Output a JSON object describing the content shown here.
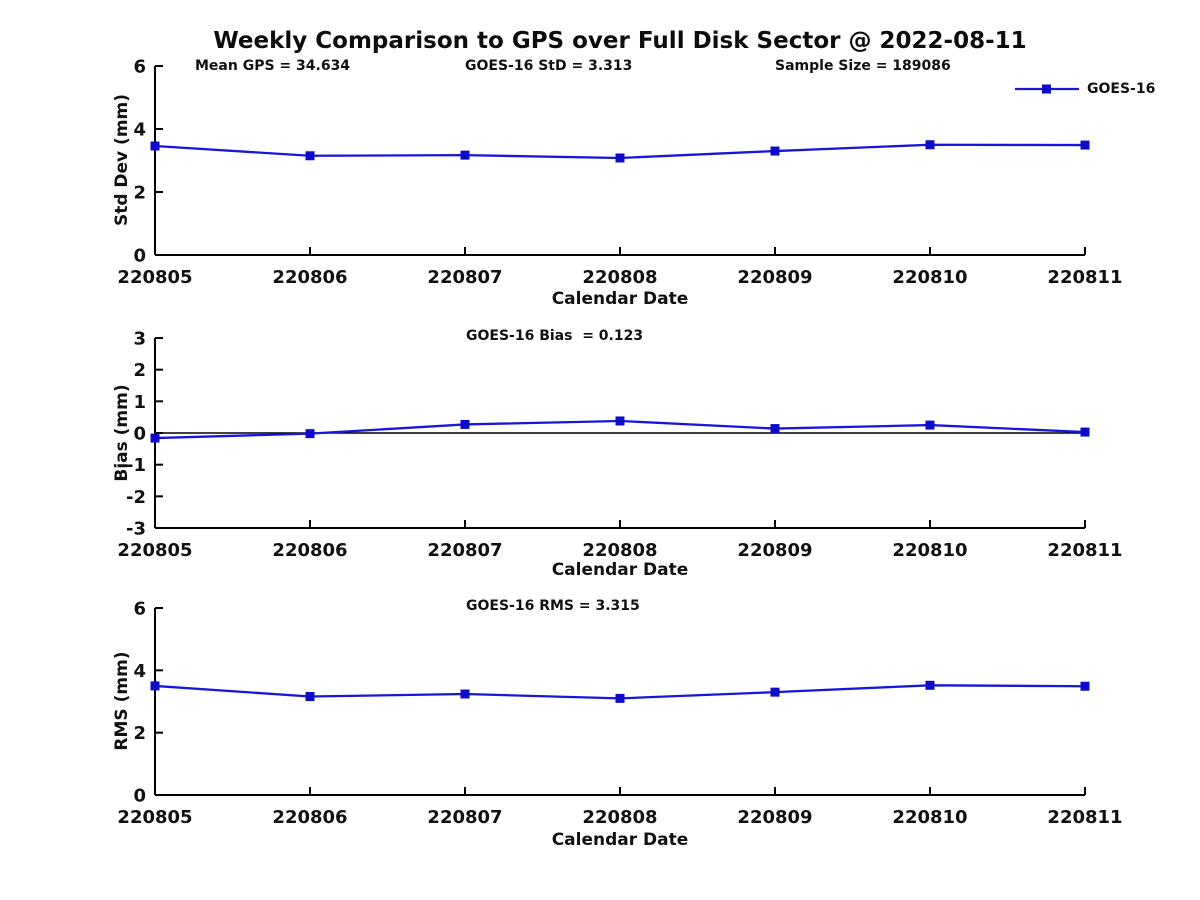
{
  "page": {
    "title": "Weekly Comparison to GPS over Full Disk Sector @ 2022-08-11"
  },
  "colors": {
    "line": "#1616dd",
    "marker": "#0d0dc9",
    "axis": "#000000",
    "text": "#111111",
    "background": "#ffffff"
  },
  "chart_data": [
    {
      "type": "line",
      "name": "std-dev-subplot",
      "categories": [
        "220805",
        "220806",
        "220807",
        "220808",
        "220809",
        "220810",
        "220811"
      ],
      "series": [
        {
          "name": "GOES-16",
          "values": [
            3.46,
            3.15,
            3.17,
            3.08,
            3.3,
            3.5,
            3.49
          ]
        }
      ],
      "xlabel": "Calendar Date",
      "ylabel": "Std Dev (mm)",
      "ylim": [
        0,
        6
      ],
      "yticks": [
        0,
        2,
        4,
        6
      ],
      "grid": false,
      "zero_line": false,
      "marker": "square",
      "annotations": [
        "Mean GPS = 34.634",
        "GOES-16 StD = 3.313",
        "Sample Size = 189086"
      ],
      "legend": {
        "label": "GOES-16",
        "position": "top-right"
      }
    },
    {
      "type": "line",
      "name": "bias-subplot",
      "categories": [
        "220805",
        "220806",
        "220807",
        "220808",
        "220809",
        "220810",
        "220811"
      ],
      "series": [
        {
          "name": "GOES-16",
          "values": [
            -0.16,
            -0.02,
            0.27,
            0.38,
            0.14,
            0.25,
            0.03
          ]
        }
      ],
      "xlabel": "Calendar Date",
      "ylabel": "Bias (mm)",
      "ylim": [
        -3,
        3
      ],
      "yticks": [
        3,
        2,
        1,
        0,
        -1,
        -2,
        -3
      ],
      "grid": false,
      "zero_line": true,
      "marker": "square",
      "annotations": [
        "GOES-16 Bias  = 0.123"
      ]
    },
    {
      "type": "line",
      "name": "rms-subplot",
      "categories": [
        "220805",
        "220806",
        "220807",
        "220808",
        "220809",
        "220810",
        "220811"
      ],
      "series": [
        {
          "name": "GOES-16",
          "values": [
            3.5,
            3.16,
            3.24,
            3.1,
            3.3,
            3.52,
            3.49
          ]
        }
      ],
      "xlabel": "Calendar Date",
      "ylabel": "RMS (mm)",
      "ylim": [
        0,
        6
      ],
      "yticks": [
        0,
        2,
        4,
        6
      ],
      "grid": false,
      "zero_line": false,
      "marker": "square",
      "annotations": [
        "GOES-16 RMS = 3.315"
      ]
    }
  ]
}
